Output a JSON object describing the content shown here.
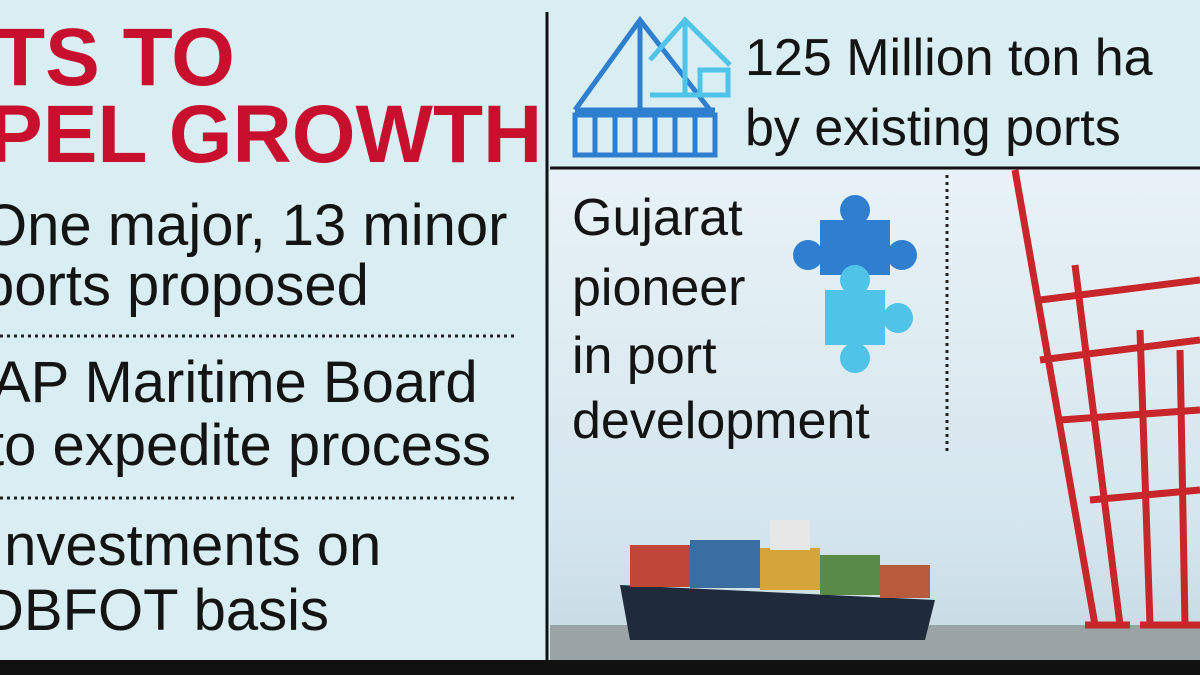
{
  "headline": {
    "lines": [
      "TS TO",
      "PEL GROWTH"
    ]
  },
  "points": [
    {
      "lines": [
        "One major, 13 minor",
        "ports proposed"
      ]
    },
    {
      "lines": [
        "AP Maritime Board",
        "to expedite process"
      ]
    },
    {
      "lines": [
        "Investments on",
        "DBFOT basis"
      ]
    }
  ],
  "capacity": {
    "lines": [
      "125 Million ton ha",
      "by existing ports"
    ]
  },
  "note": {
    "lines": [
      "Gujarat",
      "pioneer",
      "in port",
      "development"
    ]
  }
}
